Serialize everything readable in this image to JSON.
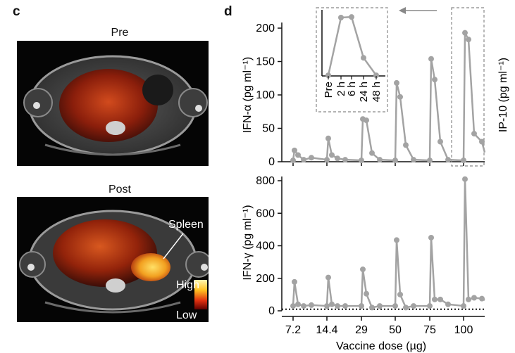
{
  "panel_c": {
    "letter": "c",
    "pre_title": "Pre",
    "post_title": "Post",
    "spleen_label": "Spleen",
    "scale_high": "High",
    "scale_low": "Low"
  },
  "panel_d": {
    "letter": "d"
  },
  "chart_data": [
    {
      "type": "line",
      "ylabel": "IFN-α (pg ml⁻¹)",
      "ylim": [
        0,
        200
      ],
      "yticks": [
        0,
        50,
        100,
        150,
        200
      ],
      "dose_groups": [
        "7.2",
        "14.4",
        "29",
        "50",
        "75",
        "100"
      ],
      "timepoint_order": [
        "Pre",
        "2 h",
        "6 h",
        "24 h",
        "48 h"
      ],
      "series": [
        {
          "dose": "7.2",
          "values": [
            2,
            17,
            10,
            3,
            6
          ]
        },
        {
          "dose": "14.4",
          "values": [
            3,
            35,
            10,
            5,
            3
          ]
        },
        {
          "dose": "29",
          "values": [
            2,
            64,
            62,
            13,
            3
          ]
        },
        {
          "dose": "50",
          "values": [
            2,
            118,
            97,
            25,
            3
          ]
        },
        {
          "dose": "75",
          "values": [
            2,
            154,
            123,
            30,
            3
          ]
        },
        {
          "dose": "100",
          "values": [
            2,
            193,
            183,
            42,
            30
          ]
        }
      ],
      "inset": {
        "x_categories": [
          "Pre",
          "2 h",
          "6 h",
          "24 h",
          "48 h"
        ],
        "values": [
          2,
          193,
          195,
          60,
          2
        ],
        "arrow": "points left from the dashed box around the 100 µg group"
      }
    },
    {
      "type": "line",
      "ylabel": "IFN-γ (pg ml⁻¹)",
      "xlabel": "Vaccine dose (µg)",
      "ylim": [
        0,
        800
      ],
      "yticks": [
        0,
        200,
        400,
        600,
        800
      ],
      "xtick_labels": [
        "7.2",
        "14.4",
        "29",
        "50",
        "75",
        "100"
      ],
      "reference_line": "dotted baseline near 10 pg/ml",
      "series": [
        {
          "dose": "7.2",
          "values": [
            30,
            178,
            40,
            30,
            35
          ]
        },
        {
          "dose": "14.4",
          "values": [
            30,
            205,
            40,
            30,
            30
          ]
        },
        {
          "dose": "29",
          "values": [
            30,
            255,
            105,
            20,
            30
          ]
        },
        {
          "dose": "50",
          "values": [
            30,
            435,
            100,
            20,
            30
          ]
        },
        {
          "dose": "75",
          "values": [
            30,
            450,
            70,
            70,
            40
          ]
        },
        {
          "dose": "100",
          "values": [
            30,
            810,
            70,
            80,
            75
          ]
        }
      ]
    }
  ],
  "cut_off_label": "IP-10 (pg ml⁻¹)",
  "colors": {
    "series": "#a3a3a3",
    "axis": "#111111",
    "dashed_box": "#888888",
    "heat_high": "#ffe066",
    "heat_low": "#7a0000"
  }
}
